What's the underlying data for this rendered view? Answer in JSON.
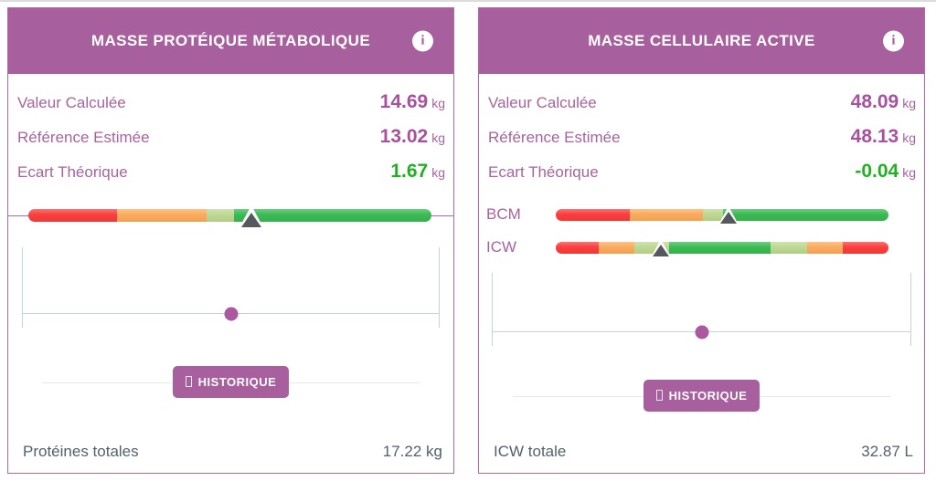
{
  "colors": {
    "header_purple": "#a75f9e",
    "panel_border": "#b469a6",
    "label_purple": "#a7639e",
    "value_purple": "#a8519c",
    "green_value": "#21b021",
    "footer_text": "#53616d",
    "slider_line": "#c5d0e0",
    "slider_dot": "#ad57a0",
    "divider_gray": "#e8e8e8",
    "marker_gray": "#55585d",
    "bar": {
      "red": "#fb3d3d",
      "orange": "#fbab5c",
      "lightgreen": "#bdd892",
      "green": "#3aba52"
    }
  },
  "panels": [
    {
      "title": "MASSE PROTÉIQUE MÉTABOLIQUE",
      "info_icon": "info-circle",
      "rows": [
        {
          "label": "Valeur Calculée",
          "value": "14.69",
          "unit": "kg",
          "value_color": "purple"
        },
        {
          "label": "Référence Estimée",
          "value": "13.02",
          "unit": "kg",
          "value_color": "purple"
        },
        {
          "label": "Ecart Théorique",
          "value": "1.67",
          "unit": "kg",
          "value_color": "green"
        }
      ],
      "bars": [
        {
          "label": "",
          "marker_pct": 55.4,
          "segments": [
            {
              "color": "red",
              "pct": 22.0
            },
            {
              "color": "orange",
              "pct": 22.3
            },
            {
              "color": "lightgreen",
              "pct": 6.8
            },
            {
              "color": "green",
              "pct": 4.2
            },
            {
              "color": "green",
              "pct": 44.7
            }
          ]
        }
      ],
      "slider": {
        "dot_pct": 50
      },
      "button_label": "HISTORIQUE",
      "footer": {
        "label": "Protéines totales",
        "value": "17.22 kg"
      }
    },
    {
      "title": "MASSE CELLULAIRE ACTIVE",
      "info_icon": "info-circle",
      "rows": [
        {
          "label": "Valeur Calculée",
          "value": "48.09",
          "unit": "kg",
          "value_color": "purple"
        },
        {
          "label": "Référence Estimée",
          "value": "48.13",
          "unit": "kg",
          "value_color": "purple"
        },
        {
          "label": "Ecart Théorique",
          "value": "-0.04",
          "unit": "kg",
          "value_color": "green"
        }
      ],
      "bars": [
        {
          "label": "BCM",
          "marker_pct": 52.0,
          "segments": [
            {
              "color": "red",
              "pct": 22.3
            },
            {
              "color": "orange",
              "pct": 21.8
            },
            {
              "color": "lightgreen",
              "pct": 6.3
            },
            {
              "color": "green",
              "pct": 1.8
            },
            {
              "color": "green",
              "pct": 47.8
            }
          ]
        },
        {
          "label": "ICW",
          "marker_pct": 31.6,
          "segments": [
            {
              "color": "red",
              "pct": 12.8
            },
            {
              "color": "orange",
              "pct": 10.9
            },
            {
              "color": "lightgreen",
              "pct": 10.3
            },
            {
              "color": "green",
              "pct": 30.6
            },
            {
              "color": "lightgreen",
              "pct": 10.9
            },
            {
              "color": "orange",
              "pct": 10.8
            },
            {
              "color": "red",
              "pct": 13.7
            }
          ]
        }
      ],
      "slider": {
        "dot_pct": 50
      },
      "button_label": "HISTORIQUE",
      "footer": {
        "label": "ICW totale",
        "value": "32.87 L"
      }
    }
  ]
}
